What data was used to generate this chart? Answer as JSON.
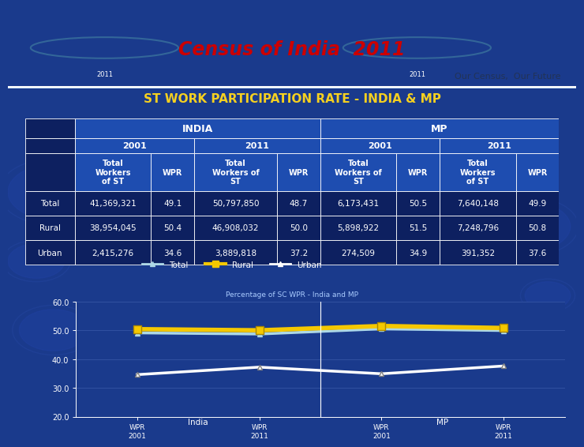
{
  "title_main": "Census of India  2011",
  "subtitle": "Our Census,  Our Future",
  "table_title": "ST WORK PARTICIPATION RATE - INDIA & MP",
  "chart_subtitle": "Percentage of SC WPR - India and MP",
  "bg_header_color": "#aec6e8",
  "bg_body_color": "#1a3a8c",
  "title_text_color": "#cc0000",
  "table_title_color": "#f5d020",
  "row_labels": [
    "Total",
    "Rural",
    "Urban"
  ],
  "col_subheaders": [
    "Total\nWorkers\nof ST",
    "WPR",
    "Total\nWorkers of\nST",
    "WPR",
    "Total\nWorkers of\nST",
    "WPR",
    "Total\nWorkers\nof ST",
    "WPR"
  ],
  "data": {
    "Total": [
      "41,369,321",
      "49.1",
      "50,797,850",
      "48.7",
      "6,173,431",
      "50.5",
      "7,640,148",
      "49.9"
    ],
    "Rural": [
      "38,954,045",
      "50.4",
      "46,908,032",
      "50.0",
      "5,898,922",
      "51.5",
      "7,248,796",
      "50.8"
    ],
    "Urban": [
      "2,415,276",
      "34.6",
      "3,889,818",
      "37.2",
      "274,509",
      "34.9",
      "391,352",
      "37.6"
    ]
  },
  "total_wpr": [
    49.1,
    48.7,
    50.5,
    49.9
  ],
  "rural_wpr": [
    50.4,
    50.0,
    51.5,
    50.8
  ],
  "urban_wpr": [
    34.6,
    37.2,
    34.9,
    37.6
  ],
  "ylim": [
    20.0,
    60.0
  ],
  "yticks": [
    20.0,
    30.0,
    40.0,
    50.0,
    60.0
  ],
  "line_total_color": "#add8e6",
  "line_rural_color": "#f5c800",
  "line_urban_color": "#ffffff",
  "line_width": 2.5,
  "x_years": [
    "2001",
    "2011",
    "2001",
    "2011"
  ],
  "x_regions": [
    "India",
    "India",
    "MP",
    "MP"
  ]
}
